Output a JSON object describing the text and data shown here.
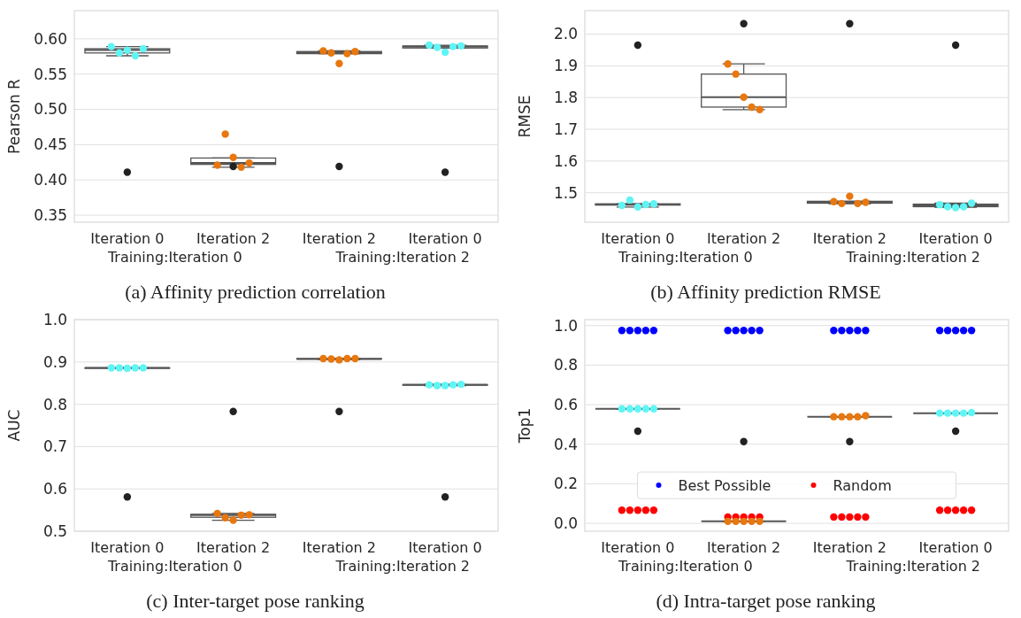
{
  "chart_data": [
    {
      "type": "box",
      "title": "(a) Affinity prediction correlation",
      "ylabel": "Pearson R",
      "categories": [
        "Iteration 0",
        "Iteration 2",
        "Iteration 2",
        "Iteration 0"
      ],
      "annotations": [
        "Training:Iteration 0",
        "Training:Iteration 2"
      ],
      "ylim": [
        0.34,
        0.64
      ],
      "yticks": [
        0.35,
        {
          "value": 0.4,
          "label": "0.40"
        },
        0.45,
        {
          "value": 0.5,
          "label": "0.50"
        },
        0.55,
        {
          "value": 0.6,
          "label": "0.60"
        }
      ],
      "grid": "y",
      "legend": false,
      "marker": "circle",
      "boxes": [
        {
          "low": 0.576,
          "q1": 0.58,
          "median": 0.584,
          "q3": 0.586,
          "high": 0.589
        },
        {
          "low": 0.418,
          "q1": 0.422,
          "median": 0.424,
          "q3": 0.431,
          "high": 0.431
        },
        {
          "low": 0.579,
          "q1": 0.579,
          "median": 0.581,
          "q3": 0.582,
          "high": 0.583
        },
        {
          "low": 0.587,
          "q1": 0.587,
          "median": 0.589,
          "q3": 0.59,
          "high": 0.591
        }
      ],
      "series": [
        {
          "type": "scatter",
          "colors": [
            "#5ff5f5",
            "#e8770f",
            "#e8770f",
            "#5ff5f5"
          ],
          "values": [
            0.589,
            0.421,
            0.583,
            0.591
          ]
        },
        {
          "type": "scatter",
          "colors": [
            "#5ff5f5",
            "#e8770f",
            "#e8770f",
            "#5ff5f5"
          ],
          "values": [
            0.58,
            0.465,
            0.58,
            0.588
          ]
        },
        {
          "type": "scatter",
          "colors": [
            "#5ff5f5",
            "#e8770f",
            "#e8770f",
            "#5ff5f5"
          ],
          "values": [
            0.584,
            0.432,
            0.565,
            0.581
          ]
        },
        {
          "type": "scatter",
          "colors": [
            "#5ff5f5",
            "#e8770f",
            "#e8770f",
            "#5ff5f5"
          ],
          "values": [
            0.576,
            0.418,
            0.579,
            0.589
          ]
        },
        {
          "type": "scatter",
          "colors": [
            "#5ff5f5",
            "#e8770f",
            "#e8770f",
            "#5ff5f5"
          ],
          "values": [
            0.586,
            0.424,
            0.582,
            0.59
          ]
        },
        {
          "type": "scatter",
          "color": "#222222",
          "values": [
            0.411,
            0.419,
            0.419,
            0.411
          ]
        }
      ]
    },
    {
      "type": "box",
      "title": "(b) Affinity prediction RMSE",
      "ylabel": "RMSE",
      "categories": [
        "Iteration 0",
        "Iteration 2",
        "Iteration 2",
        "Iteration 0"
      ],
      "annotations": [
        "Training:Iteration 0",
        "Training:Iteration 2"
      ],
      "ylim": [
        1.407,
        2.074
      ],
      "yticks": [
        1.5,
        1.6,
        1.7,
        1.8,
        1.9,
        {
          "value": 2,
          "label": "2.0"
        }
      ],
      "grid": "y",
      "legend": false,
      "marker": "circle",
      "boxes": [
        {
          "low": 1.455,
          "q1": 1.461,
          "median": 1.463,
          "q3": 1.465,
          "high": 1.465
        },
        {
          "low": 1.762,
          "q1": 1.77,
          "median": 1.801,
          "q3": 1.874,
          "high": 1.906
        },
        {
          "low": 1.465,
          "q1": 1.467,
          "median": 1.469,
          "q3": 1.473,
          "high": 1.473
        },
        {
          "low": 1.454,
          "q1": 1.456,
          "median": 1.46,
          "q3": 1.464,
          "high": 1.467
        }
      ],
      "series": [
        {
          "type": "scatter",
          "colors": [
            "#5ff5f5",
            "#e8770f",
            "#e8770f",
            "#5ff5f5"
          ],
          "values": [
            1.46,
            1.906,
            1.472,
            1.462
          ]
        },
        {
          "type": "scatter",
          "colors": [
            "#5ff5f5",
            "#e8770f",
            "#e8770f",
            "#5ff5f5"
          ],
          "values": [
            1.477,
            1.874,
            1.466,
            1.456
          ]
        },
        {
          "type": "scatter",
          "colors": [
            "#5ff5f5",
            "#e8770f",
            "#e8770f",
            "#5ff5f5"
          ],
          "values": [
            1.455,
            1.801,
            1.489,
            1.453
          ]
        },
        {
          "type": "scatter",
          "colors": [
            "#5ff5f5",
            "#e8770f",
            "#e8770f",
            "#5ff5f5"
          ],
          "values": [
            1.463,
            1.77,
            1.466,
            1.456
          ]
        },
        {
          "type": "scatter",
          "colors": [
            "#5ff5f5",
            "#e8770f",
            "#e8770f",
            "#5ff5f5"
          ],
          "values": [
            1.465,
            1.762,
            1.47,
            1.467
          ]
        },
        {
          "type": "scatter",
          "color": "#222222",
          "values": [
            1.965,
            2.033,
            2.033,
            1.965
          ]
        }
      ]
    },
    {
      "type": "box",
      "title": "(c) Inter-target pose ranking",
      "ylabel": "AUC",
      "categories": [
        "Iteration 0",
        "Iteration 2",
        "Iteration 2",
        "Iteration 0"
      ],
      "annotations": [
        "Training:Iteration 0",
        "Training:Iteration 2"
      ],
      "ylim": [
        0.5,
        1.0
      ],
      "yticks": [
        0.5,
        0.6,
        0.7,
        0.8,
        0.9,
        {
          "value": 1,
          "label": "1.0"
        }
      ],
      "grid": "y",
      "legend": false,
      "marker": "circle",
      "boxes": [
        {
          "low": 0.885,
          "q1": 0.885,
          "median": 0.886,
          "q3": 0.886,
          "high": 0.886
        },
        {
          "low": 0.526,
          "q1": 0.533,
          "median": 0.538,
          "q3": 0.54,
          "high": 0.542
        },
        {
          "low": 0.905,
          "q1": 0.907,
          "median": 0.907,
          "q3": 0.908,
          "high": 0.908
        },
        {
          "low": 0.844,
          "q1": 0.845,
          "median": 0.846,
          "q3": 0.846,
          "high": 0.847
        }
      ],
      "series": [
        {
          "type": "scatter",
          "colors": [
            "#5ff5f5",
            "#e8770f",
            "#e8770f",
            "#5ff5f5"
          ],
          "values": [
            0.886,
            0.542,
            0.908,
            0.846
          ]
        },
        {
          "type": "scatter",
          "colors": [
            "#5ff5f5",
            "#e8770f",
            "#e8770f",
            "#5ff5f5"
          ],
          "values": [
            0.886,
            0.532,
            0.907,
            0.844
          ]
        },
        {
          "type": "scatter",
          "colors": [
            "#5ff5f5",
            "#e8770f",
            "#e8770f",
            "#5ff5f5"
          ],
          "values": [
            0.885,
            0.526,
            0.905,
            0.844
          ]
        },
        {
          "type": "scatter",
          "colors": [
            "#5ff5f5",
            "#e8770f",
            "#e8770f",
            "#5ff5f5"
          ],
          "values": [
            0.886,
            0.538,
            0.908,
            0.846
          ]
        },
        {
          "type": "scatter",
          "colors": [
            "#5ff5f5",
            "#e8770f",
            "#e8770f",
            "#5ff5f5"
          ],
          "values": [
            0.886,
            0.539,
            0.908,
            0.847
          ]
        },
        {
          "type": "scatter",
          "color": "#222222",
          "values": [
            0.581,
            0.783,
            0.783,
            0.581
          ]
        }
      ]
    },
    {
      "type": "box",
      "title": "(d) Intra-target pose ranking",
      "ylabel": "Top1",
      "categories": [
        "Iteration 0",
        "Iteration 2",
        "Iteration 2",
        "Iteration 0"
      ],
      "annotations": [
        "Training:Iteration 0",
        "Training:Iteration 2"
      ],
      "ylim": [
        -0.04,
        1.03
      ],
      "yticks": [
        {
          "value": 0,
          "label": "0.0"
        },
        0.2,
        0.4,
        0.6,
        0.8,
        {
          "value": 1,
          "label": "1.0"
        }
      ],
      "grid": "y",
      "legend": "bottom",
      "marker": "circle",
      "boxes": [
        {
          "low": 0.579,
          "q1": 0.579,
          "median": 0.579,
          "q3": 0.579,
          "high": 0.579
        },
        {
          "low": 0.01,
          "q1": 0.01,
          "median": 0.01,
          "q3": 0.01,
          "high": 0.01
        },
        {
          "low": 0.539,
          "q1": 0.539,
          "median": 0.539,
          "q3": 0.539,
          "high": 0.539
        },
        {
          "low": 0.557,
          "q1": 0.557,
          "median": 0.557,
          "q3": 0.557,
          "high": 0.557
        }
      ],
      "series": [
        {
          "type": "scatter",
          "name": "Best Possible",
          "color": "#0000ff",
          "values": [
            0.975,
            0.975,
            0.975,
            0.975
          ]
        },
        {
          "type": "scatter",
          "color": "#0000ff",
          "values": [
            0.975,
            0.975,
            0.975,
            0.975
          ]
        },
        {
          "type": "scatter",
          "color": "#0000ff",
          "values": [
            0.975,
            0.975,
            0.975,
            0.975
          ]
        },
        {
          "type": "scatter",
          "color": "#0000ff",
          "values": [
            0.975,
            0.975,
            0.975,
            0.975
          ]
        },
        {
          "type": "scatter",
          "color": "#0000ff",
          "values": [
            0.975,
            0.975,
            0.975,
            0.975
          ]
        },
        {
          "type": "scatter",
          "name": "Random",
          "color": "#ff0000",
          "values": [
            0.066,
            0.032,
            0.032,
            0.066
          ]
        },
        {
          "type": "scatter",
          "color": "#ff0000",
          "values": [
            0.066,
            0.032,
            0.032,
            0.066
          ]
        },
        {
          "type": "scatter",
          "color": "#ff0000",
          "values": [
            0.066,
            0.032,
            0.032,
            0.066
          ]
        },
        {
          "type": "scatter",
          "color": "#ff0000",
          "values": [
            0.066,
            0.032,
            0.032,
            0.066
          ]
        },
        {
          "type": "scatter",
          "color": "#ff0000",
          "values": [
            0.066,
            0.032,
            0.032,
            0.066
          ]
        },
        {
          "type": "scatter",
          "colors": [
            "#5ff5f5",
            "#e8770f",
            "#e8770f",
            "#5ff5f5"
          ],
          "values": [
            0.579,
            0.01,
            0.539,
            0.557
          ]
        },
        {
          "type": "scatter",
          "colors": [
            "#5ff5f5",
            "#e8770f",
            "#e8770f",
            "#5ff5f5"
          ],
          "values": [
            0.579,
            0.01,
            0.539,
            0.557
          ]
        },
        {
          "type": "scatter",
          "colors": [
            "#5ff5f5",
            "#e8770f",
            "#e8770f",
            "#5ff5f5"
          ],
          "values": [
            0.579,
            0.01,
            0.539,
            0.557
          ]
        },
        {
          "type": "scatter",
          "colors": [
            "#5ff5f5",
            "#e8770f",
            "#e8770f",
            "#5ff5f5"
          ],
          "values": [
            0.579,
            0.01,
            0.539,
            0.557
          ]
        },
        {
          "type": "scatter",
          "colors": [
            "#5ff5f5",
            "#e8770f",
            "#e8770f",
            "#5ff5f5"
          ],
          "values": [
            0.579,
            0.01,
            0.544,
            0.56
          ]
        },
        {
          "type": "scatter",
          "color": "#222222",
          "values": [
            0.466,
            0.413,
            0.413,
            0.466
          ]
        }
      ]
    }
  ]
}
